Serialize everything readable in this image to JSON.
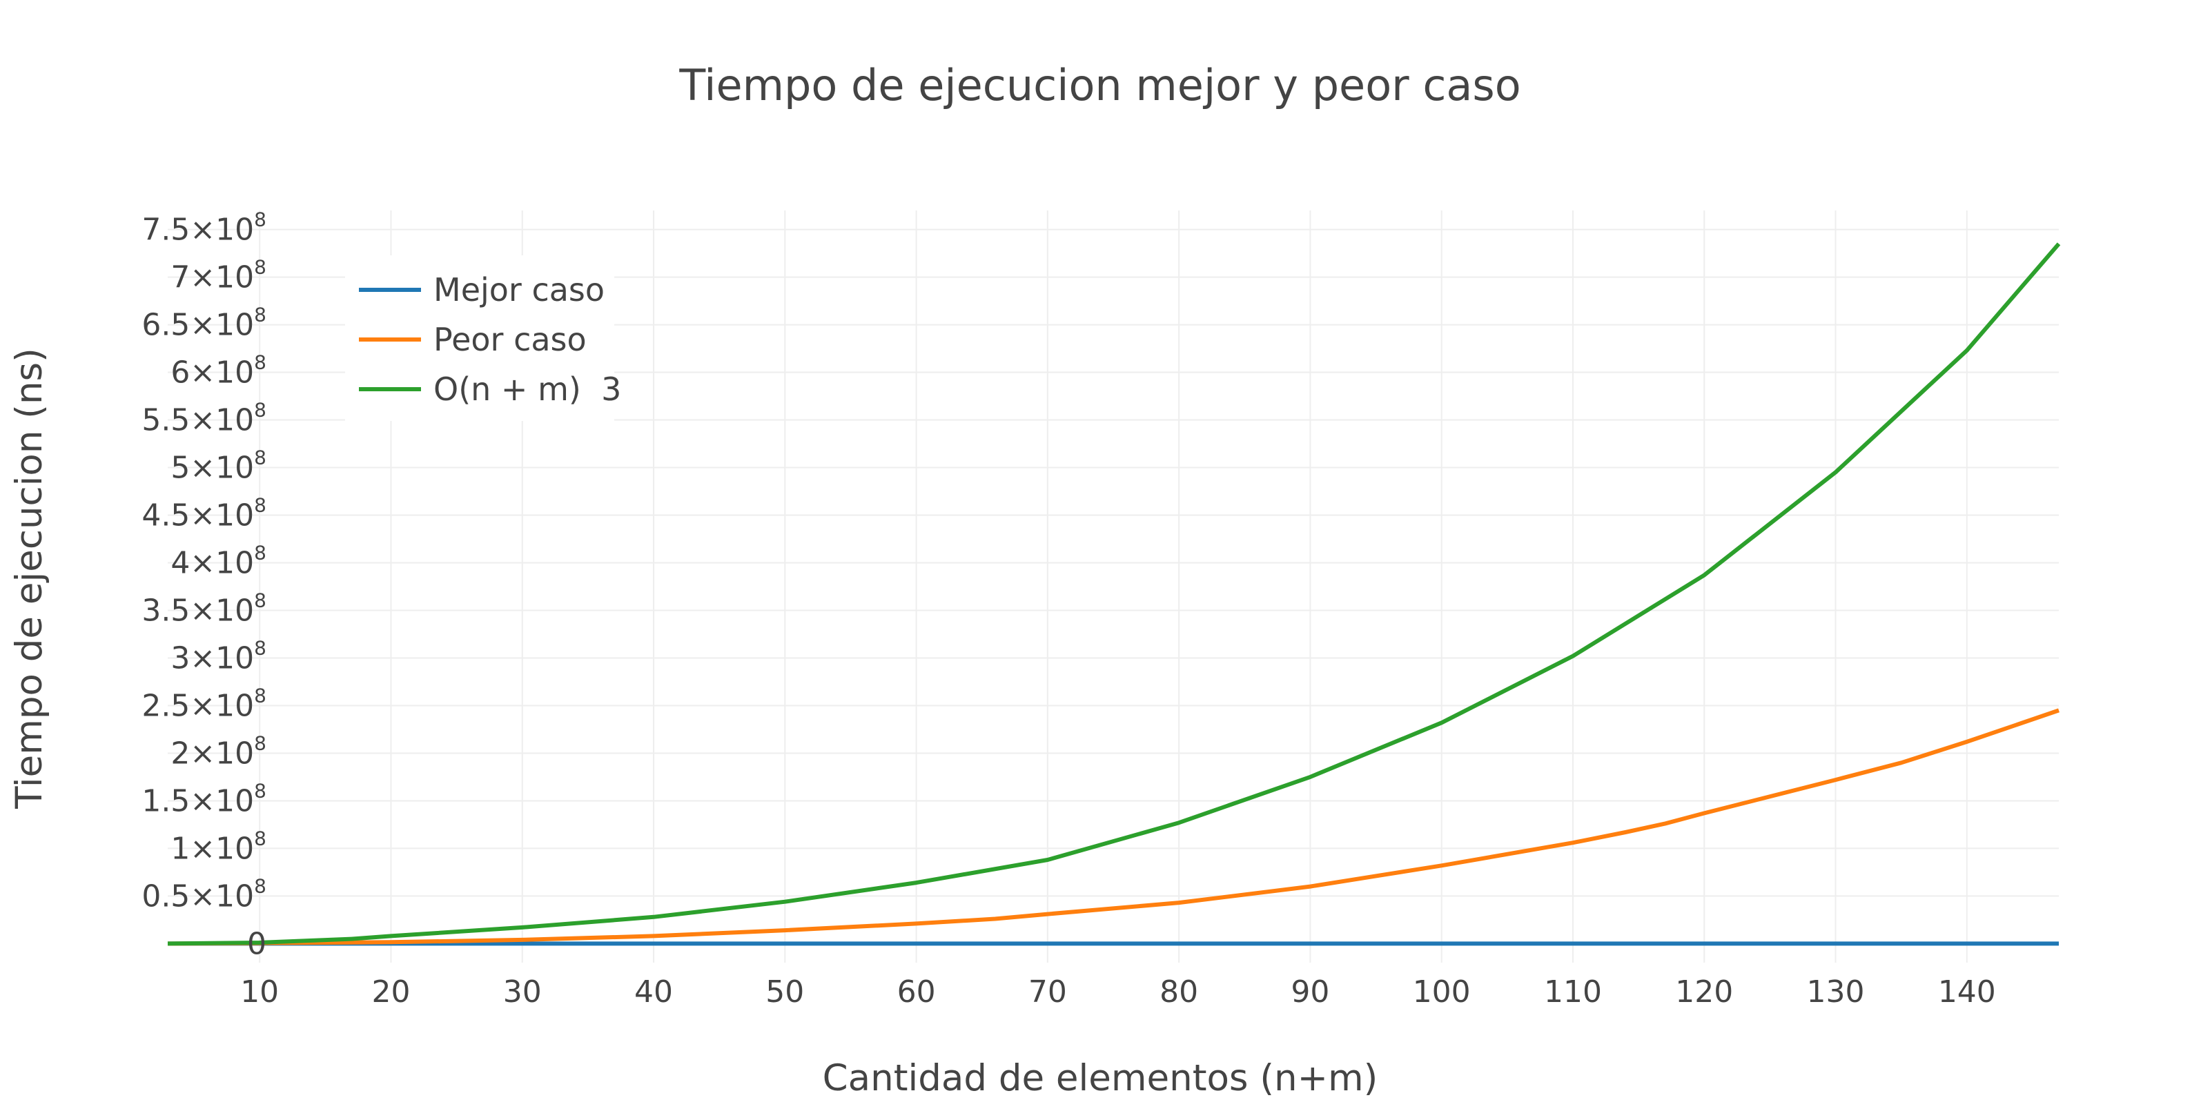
{
  "chart_data": {
    "type": "line",
    "title": "Tiempo de ejecucion mejor y peor caso",
    "xlabel": "Cantidad de elementos (n+m)",
    "ylabel": "Tiempo de ejecucion (ns)",
    "xlim": [
      3,
      147
    ],
    "ylim": [
      -20000000,
      770000000
    ],
    "grid": true,
    "legend_position": "top-left",
    "x_ticks": [
      10,
      20,
      30,
      40,
      50,
      60,
      70,
      80,
      90,
      100,
      110,
      120,
      130,
      140
    ],
    "y_ticks": [
      {
        "value": 0,
        "mantissa": "0",
        "exp": ""
      },
      {
        "value": 50000000,
        "mantissa": "0.5×10",
        "exp": "8"
      },
      {
        "value": 100000000,
        "mantissa": "1×10",
        "exp": "8"
      },
      {
        "value": 150000000,
        "mantissa": "1.5×10",
        "exp": "8"
      },
      {
        "value": 200000000,
        "mantissa": "2×10",
        "exp": "8"
      },
      {
        "value": 250000000,
        "mantissa": "2.5×10",
        "exp": "8"
      },
      {
        "value": 300000000,
        "mantissa": "3×10",
        "exp": "8"
      },
      {
        "value": 350000000,
        "mantissa": "3.5×10",
        "exp": "8"
      },
      {
        "value": 400000000,
        "mantissa": "4×10",
        "exp": "8"
      },
      {
        "value": 450000000,
        "mantissa": "4.5×10",
        "exp": "8"
      },
      {
        "value": 500000000,
        "mantissa": "5×10",
        "exp": "8"
      },
      {
        "value": 550000000,
        "mantissa": "5.5×10",
        "exp": "8"
      },
      {
        "value": 600000000,
        "mantissa": "6×10",
        "exp": "8"
      },
      {
        "value": 650000000,
        "mantissa": "6.5×10",
        "exp": "8"
      },
      {
        "value": 700000000,
        "mantissa": "7×10",
        "exp": "8"
      },
      {
        "value": 750000000,
        "mantissa": "7.5×10",
        "exp": "8"
      }
    ],
    "series": [
      {
        "name": "Mejor caso",
        "color": "#1f77b4",
        "x": [
          3,
          15,
          30,
          45,
          60,
          75,
          90,
          105,
          120,
          135,
          147
        ],
        "y": [
          0,
          0,
          0,
          0,
          0,
          0,
          0,
          0,
          0,
          0,
          0
        ]
      },
      {
        "name": "Peor caso",
        "color": "#ff7f0e",
        "x": [
          3,
          10,
          20,
          30,
          40,
          50,
          60,
          66,
          70,
          80,
          90,
          100,
          110,
          114,
          117,
          120,
          130,
          135,
          140,
          147
        ],
        "y": [
          0,
          500000,
          1500000,
          4000000,
          8000000,
          14000000,
          21000000,
          26000000,
          31000000,
          43000000,
          60000000,
          82000000,
          106000000,
          117000000,
          126000000,
          137000000,
          172000000,
          190000000,
          212000000,
          245000000
        ]
      },
      {
        "name": "O(n + m)  3",
        "color": "#2ca02c",
        "x": [
          3,
          10,
          17,
          20,
          30,
          40,
          50,
          60,
          70,
          80,
          90,
          100,
          110,
          120,
          130,
          140,
          147
        ],
        "y": [
          0,
          1000000,
          4913000,
          8000000,
          17000000,
          28000000,
          44000000,
          64000000,
          88000000,
          127000000,
          175000000,
          232000000,
          302000000,
          387000000,
          495000000,
          623000000,
          735000000
        ]
      }
    ]
  }
}
